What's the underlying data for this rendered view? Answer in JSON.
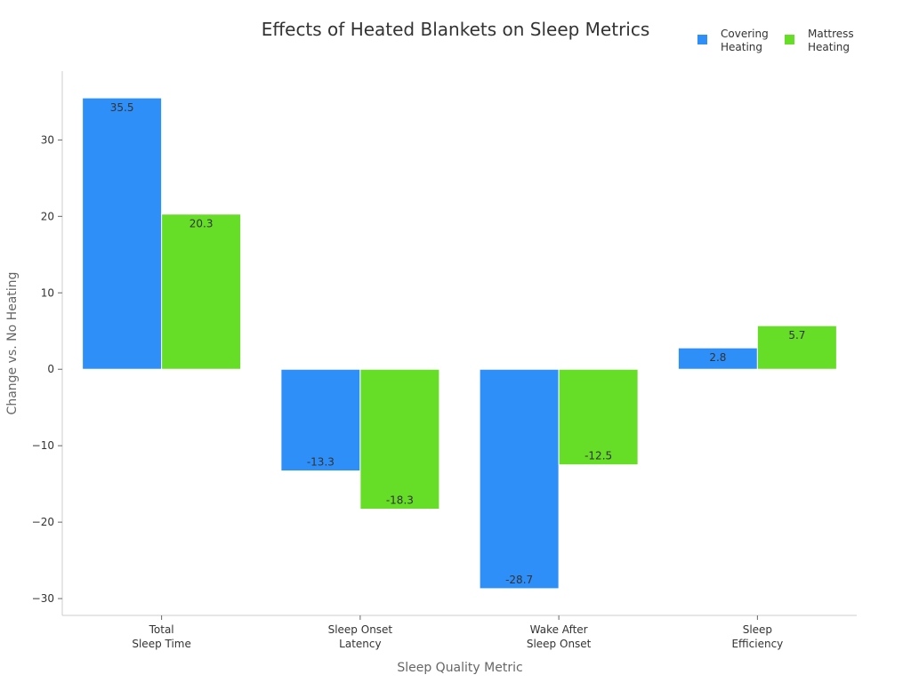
{
  "chart_data": {
    "type": "bar",
    "title": "Effects of Heated Blankets on Sleep Metrics",
    "xlabel": "Sleep Quality Metric",
    "ylabel": "Change vs. No Heating",
    "categories": [
      [
        "Total",
        "Sleep Time"
      ],
      [
        "Sleep Onset",
        "Latency"
      ],
      [
        "Wake After",
        "Sleep Onset"
      ],
      [
        "Sleep",
        "Efficiency"
      ]
    ],
    "series": [
      {
        "name": [
          "Covering",
          "Heating"
        ],
        "color": "#2f8ff8",
        "values": [
          35.5,
          -13.3,
          -28.7,
          2.8
        ]
      },
      {
        "name": [
          "Mattress",
          "Heating"
        ],
        "color": "#66dd26",
        "values": [
          20.3,
          -18.3,
          -12.5,
          5.7
        ]
      }
    ],
    "ylim": [
      -32.2,
      39.0
    ],
    "yticks": [
      -30,
      -20,
      -10,
      0,
      10,
      20,
      30
    ],
    "ytick_labels": [
      "−30",
      "−20",
      "−10",
      "0",
      "10",
      "20",
      "30"
    ],
    "grid": false,
    "legend": "top-right"
  }
}
